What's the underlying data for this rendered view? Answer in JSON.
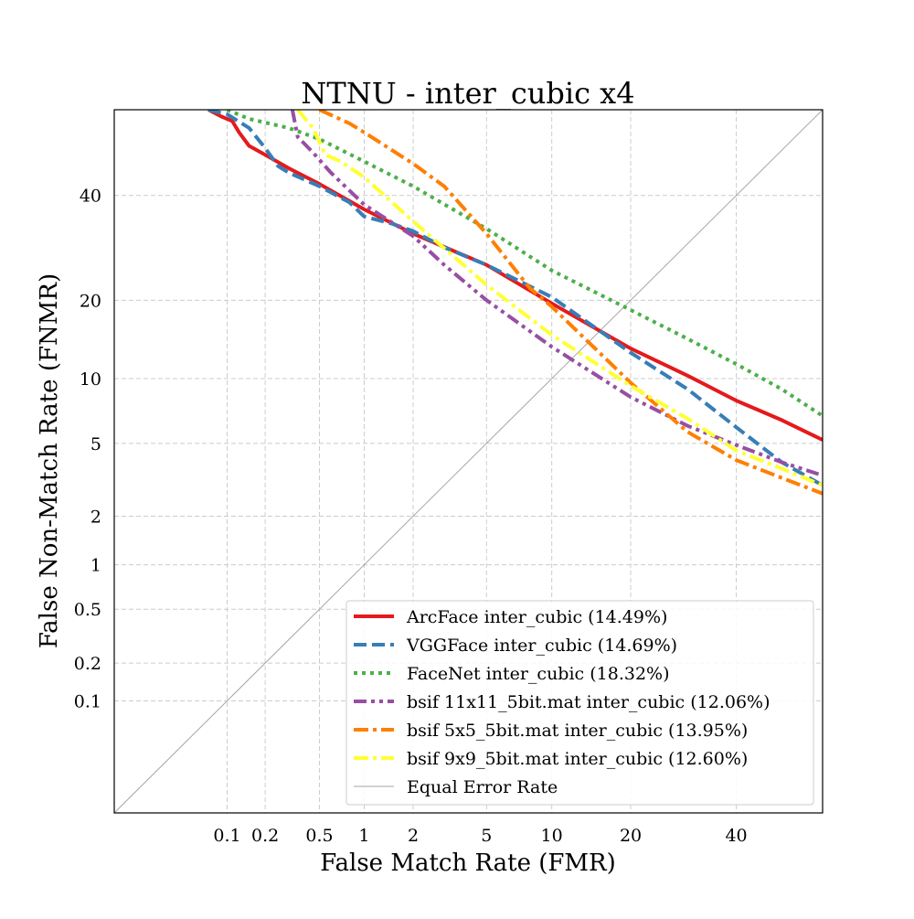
{
  "chart_data": {
    "type": "line",
    "title": "NTNU - inter_cubic x4",
    "xlabel": "False Match Rate (FMR)",
    "ylabel": "False Non-Match Rate (FNMR)",
    "scale": "probit (normal deviate) axes, values in percent",
    "xlim": [
      0.01,
      59
    ],
    "ylim": [
      0.01,
      59
    ],
    "xticks": [
      {
        "value": 0.1,
        "label": "0.1"
      },
      {
        "value": 0.2,
        "label": "0.2"
      },
      {
        "value": 0.5,
        "label": "0.5"
      },
      {
        "value": 1,
        "label": "1"
      },
      {
        "value": 2,
        "label": "2"
      },
      {
        "value": 5,
        "label": "5"
      },
      {
        "value": 10,
        "label": "10"
      },
      {
        "value": 20,
        "label": "20"
      },
      {
        "value": 40,
        "label": "40"
      }
    ],
    "yticks": [
      {
        "value": 0.1,
        "label": "0.1"
      },
      {
        "value": 0.2,
        "label": "0.2"
      },
      {
        "value": 0.5,
        "label": "0.5"
      },
      {
        "value": 1,
        "label": "1"
      },
      {
        "value": 2,
        "label": "2"
      },
      {
        "value": 5,
        "label": "5"
      },
      {
        "value": 10,
        "label": "10"
      },
      {
        "value": 20,
        "label": "20"
      },
      {
        "value": 40,
        "label": "40"
      }
    ],
    "grid": true,
    "legend_position": "lower-right",
    "series": [
      {
        "name": "ArcFace inter_cubic (14.49%)",
        "color": "#e41a1c",
        "dash": "solid",
        "width": 4,
        "points": [
          [
            0.07,
            59
          ],
          [
            0.09,
            57.5
          ],
          [
            0.11,
            56.5
          ],
          [
            0.125,
            54
          ],
          [
            0.15,
            51
          ],
          [
            0.2,
            49
          ],
          [
            0.3,
            46
          ],
          [
            0.5,
            42.5
          ],
          [
            1,
            37
          ],
          [
            2,
            32
          ],
          [
            5,
            26
          ],
          [
            10,
            19.5
          ],
          [
            20,
            13.3
          ],
          [
            30,
            10.3
          ],
          [
            40,
            8
          ],
          [
            50,
            6.5
          ],
          [
            59,
            5.2
          ]
        ]
      },
      {
        "name": "VGGFace inter_cubic (14.69%)",
        "color": "#377eb8",
        "dash": "dashed",
        "width": 4,
        "points": [
          [
            0.07,
            59
          ],
          [
            0.1,
            58
          ],
          [
            0.15,
            55
          ],
          [
            0.2,
            50.5
          ],
          [
            0.25,
            46.5
          ],
          [
            0.3,
            45
          ],
          [
            0.5,
            42
          ],
          [
            0.8,
            38.5
          ],
          [
            1,
            35.5
          ],
          [
            1.5,
            34
          ],
          [
            2,
            32.5
          ],
          [
            3,
            29.3
          ],
          [
            5,
            26
          ],
          [
            10,
            20.5
          ],
          [
            20,
            12.8
          ],
          [
            30,
            9
          ],
          [
            40,
            6
          ],
          [
            50,
            4
          ],
          [
            59,
            3
          ]
        ]
      },
      {
        "name": "FaceNet inter_cubic (18.32%)",
        "color": "#4daf4a",
        "dash": "dotted",
        "width": 4,
        "points": [
          [
            0.1,
            59
          ],
          [
            0.15,
            57
          ],
          [
            0.3,
            55
          ],
          [
            0.5,
            52.5
          ],
          [
            1,
            47.5
          ],
          [
            2,
            42
          ],
          [
            5,
            33
          ],
          [
            10,
            25
          ],
          [
            20,
            18.5
          ],
          [
            30,
            14.5
          ],
          [
            40,
            11.5
          ],
          [
            50,
            9
          ],
          [
            59,
            6.8
          ]
        ]
      },
      {
        "name": "bsif 11x11_5bit.mat inter_cubic (12.06%)",
        "color": "#984ea3",
        "dash": "dashdot-dot",
        "width": 4,
        "points": [
          [
            0.32,
            59
          ],
          [
            0.35,
            53
          ],
          [
            0.45,
            49.5
          ],
          [
            0.6,
            45
          ],
          [
            1,
            38
          ],
          [
            2,
            31.5
          ],
          [
            3,
            26
          ],
          [
            5,
            20
          ],
          [
            10,
            13.5
          ],
          [
            20,
            8.3
          ],
          [
            30,
            6.1
          ],
          [
            40,
            4.9
          ],
          [
            50,
            4
          ],
          [
            59,
            3.4
          ]
        ]
      },
      {
        "name": "bsif 5x5_5bit.mat inter_cubic (13.95%)",
        "color": "#ff7f00",
        "dash": "dashdot",
        "width": 4,
        "points": [
          [
            0.5,
            59
          ],
          [
            0.8,
            56
          ],
          [
            1,
            54
          ],
          [
            2,
            47
          ],
          [
            3,
            42
          ],
          [
            5,
            32
          ],
          [
            8,
            22
          ],
          [
            10,
            19
          ],
          [
            20,
            9.6
          ],
          [
            30,
            5.7
          ],
          [
            40,
            4.1
          ],
          [
            50,
            3.3
          ],
          [
            59,
            2.7
          ]
        ]
      },
      {
        "name": "bsif 9x9_5bit.mat inter_cubic (12.60%)",
        "color": "#ffff33",
        "dash": "dashdot",
        "width": 4,
        "points": [
          [
            0.35,
            59
          ],
          [
            0.45,
            55
          ],
          [
            0.55,
            49
          ],
          [
            0.7,
            47.5
          ],
          [
            1,
            44
          ],
          [
            2,
            34.5
          ],
          [
            5,
            22.5
          ],
          [
            10,
            15
          ],
          [
            20,
            9.3
          ],
          [
            30,
            6.6
          ],
          [
            40,
            4.6
          ],
          [
            50,
            3.7
          ],
          [
            59,
            3
          ]
        ]
      },
      {
        "name": "Equal Error Rate",
        "color": "#a6a6a6",
        "dash": "solid",
        "width": 1,
        "points": [
          [
            0.01,
            0.01
          ],
          [
            59,
            59
          ]
        ]
      }
    ]
  }
}
